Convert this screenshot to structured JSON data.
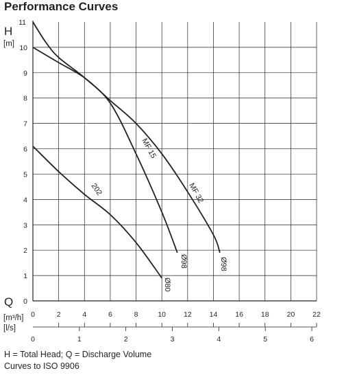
{
  "chart_data": {
    "type": "line",
    "title": "Performance Curves",
    "y_axis": {
      "symbol": "H",
      "unit": "[m]",
      "range": [
        0,
        11
      ],
      "ticks": [
        "0",
        "1",
        "2",
        "3",
        "4",
        "5",
        "6",
        "7",
        "8",
        "9",
        "10",
        "11"
      ]
    },
    "x_axis_primary": {
      "symbol": "Q",
      "unit": "[m³/h]",
      "range": [
        0,
        22
      ],
      "ticks": [
        "0",
        "2",
        "4",
        "6",
        "8",
        "10",
        "12",
        "14",
        "16",
        "18",
        "20",
        "22"
      ]
    },
    "x_axis_secondary": {
      "unit": "[l/s]",
      "ticks": [
        "0",
        "1",
        "2",
        "3",
        "4",
        "5",
        "6"
      ]
    },
    "grid": true,
    "series": [
      {
        "name": "MF 32",
        "label_end": "Ø98",
        "x": [
          0,
          2,
          4,
          6,
          8,
          10,
          12,
          14,
          14.5
        ],
        "y": [
          10.0,
          9.4,
          8.8,
          7.9,
          7.0,
          5.8,
          4.3,
          2.6,
          1.9
        ]
      },
      {
        "name": "MF 15",
        "label_end": "Ø98",
        "x": [
          0,
          1,
          2,
          4,
          6,
          8,
          10,
          11.2
        ],
        "y": [
          11.0,
          10.2,
          9.6,
          8.8,
          7.8,
          5.8,
          3.5,
          1.9
        ]
      },
      {
        "name": "202",
        "label_end": "Ø80",
        "x": [
          0,
          2,
          4,
          6,
          8,
          10
        ],
        "y": [
          6.1,
          5.1,
          4.2,
          3.4,
          2.3,
          0.9
        ]
      }
    ],
    "note_lines": [
      "H = Total Head; Q = Discharge Volume",
      "Curves to ISO 9906"
    ]
  }
}
